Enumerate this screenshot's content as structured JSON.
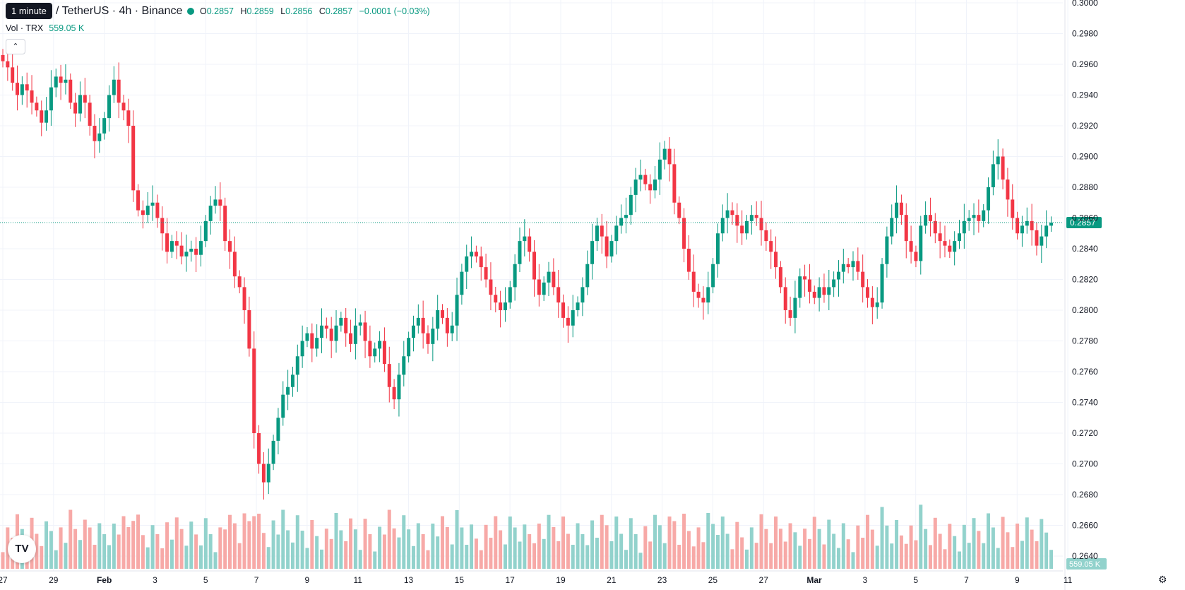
{
  "header": {
    "interval_tooltip": "1 minute",
    "symbol_title": "/ TetherUS · 4h · Binance",
    "ohlc": {
      "o_label": "O",
      "o": "0.2857",
      "h_label": "H",
      "h": "0.2859",
      "l_label": "L",
      "l": "0.2856",
      "c_label": "C",
      "c": "0.2857",
      "change": "−0.0001 (−0.03%)"
    },
    "volume_label": "Vol · TRX",
    "volume_value": "559.05 K",
    "collapse_icon": "chevron-up-icon"
  },
  "colors": {
    "up": "#089981",
    "down": "#f23645",
    "up_volume": "#92d2cc",
    "down_volume": "#f7a9a7",
    "grid": "#f0f3fa",
    "text": "#131722"
  },
  "footer": {
    "logo_icon": "tradingview-logo-icon",
    "logo_text": "TV",
    "settings_icon": "gear-icon"
  },
  "chart_data": {
    "type": "candlestick",
    "ylim": [
      0.266,
      0.3
    ],
    "y_ticks": [
      "0.3000",
      "0.2980",
      "0.2960",
      "0.2940",
      "0.2920",
      "0.2900",
      "0.2880",
      "0.2860",
      "0.2840",
      "0.2820",
      "0.2800",
      "0.2780",
      "0.2760",
      "0.2740",
      "0.2720",
      "0.2700",
      "0.2680",
      "0.2660",
      "0.2640"
    ],
    "x_ticks": [
      "27",
      "29",
      "Feb",
      "3",
      "5",
      "7",
      "9",
      "11",
      "13",
      "15",
      "17",
      "19",
      "21",
      "23",
      "25",
      "27",
      "Mar",
      "3",
      "5",
      "7",
      "9",
      "11"
    ],
    "last_price": "0.2857",
    "last_volume": "559.05 K",
    "close_series": [
      0.2962,
      0.2958,
      0.2948,
      0.294,
      0.2947,
      0.2943,
      0.2935,
      0.293,
      0.2922,
      0.293,
      0.2945,
      0.2952,
      0.2948,
      0.295,
      0.2935,
      0.2928,
      0.294,
      0.2935,
      0.292,
      0.291,
      0.2915,
      0.2925,
      0.294,
      0.295,
      0.2935,
      0.293,
      0.292,
      0.2878,
      0.2865,
      0.2862,
      0.2868,
      0.287,
      0.286,
      0.285,
      0.2838,
      0.2845,
      0.2842,
      0.2835,
      0.2838,
      0.284,
      0.2836,
      0.2845,
      0.2858,
      0.2868,
      0.2872,
      0.2868,
      0.2845,
      0.2838,
      0.2822,
      0.2815,
      0.28,
      0.2775,
      0.272,
      0.27,
      0.2688,
      0.27,
      0.2715,
      0.273,
      0.2745,
      0.275,
      0.2758,
      0.277,
      0.278,
      0.2785,
      0.2775,
      0.2782,
      0.279,
      0.2788,
      0.278,
      0.279,
      0.2795,
      0.2785,
      0.2778,
      0.279,
      0.2792,
      0.278,
      0.277,
      0.2775,
      0.278,
      0.2765,
      0.275,
      0.2742,
      0.2758,
      0.277,
      0.2782,
      0.279,
      0.2795,
      0.2785,
      0.2778,
      0.2788,
      0.28,
      0.2795,
      0.2785,
      0.279,
      0.281,
      0.2825,
      0.2835,
      0.2838,
      0.2835,
      0.2828,
      0.282,
      0.281,
      0.2805,
      0.28,
      0.2805,
      0.2815,
      0.283,
      0.2845,
      0.2848,
      0.2838,
      0.282,
      0.281,
      0.2818,
      0.2825,
      0.2815,
      0.2805,
      0.2795,
      0.279,
      0.28,
      0.2805,
      0.2815,
      0.283,
      0.2845,
      0.2855,
      0.2848,
      0.2835,
      0.2845,
      0.2855,
      0.286,
      0.2862,
      0.2875,
      0.2885,
      0.2888,
      0.2882,
      0.2878,
      0.2885,
      0.2898,
      0.2905,
      0.2895,
      0.287,
      0.286,
      0.284,
      0.2825,
      0.2812,
      0.2808,
      0.2805,
      0.2815,
      0.283,
      0.285,
      0.286,
      0.2865,
      0.2862,
      0.2855,
      0.285,
      0.2858,
      0.2862,
      0.286,
      0.2852,
      0.2845,
      0.2838,
      0.2828,
      0.2815,
      0.28,
      0.2795,
      0.2808,
      0.2822,
      0.282,
      0.2812,
      0.2808,
      0.2815,
      0.281,
      0.2815,
      0.282,
      0.2825,
      0.283,
      0.2828,
      0.2832,
      0.2825,
      0.2815,
      0.2808,
      0.2802,
      0.2805,
      0.283,
      0.2848,
      0.286,
      0.287,
      0.2862,
      0.2845,
      0.2838,
      0.2832,
      0.2855,
      0.2862,
      0.2858,
      0.285,
      0.2845,
      0.2842,
      0.2838,
      0.2845,
      0.285,
      0.2858,
      0.286,
      0.2862,
      0.2858,
      0.2865,
      0.288,
      0.2895,
      0.29,
      0.2885,
      0.2872,
      0.286,
      0.285,
      0.2855,
      0.2858,
      0.2852,
      0.2842,
      0.2848,
      0.2855,
      0.2857
    ]
  }
}
